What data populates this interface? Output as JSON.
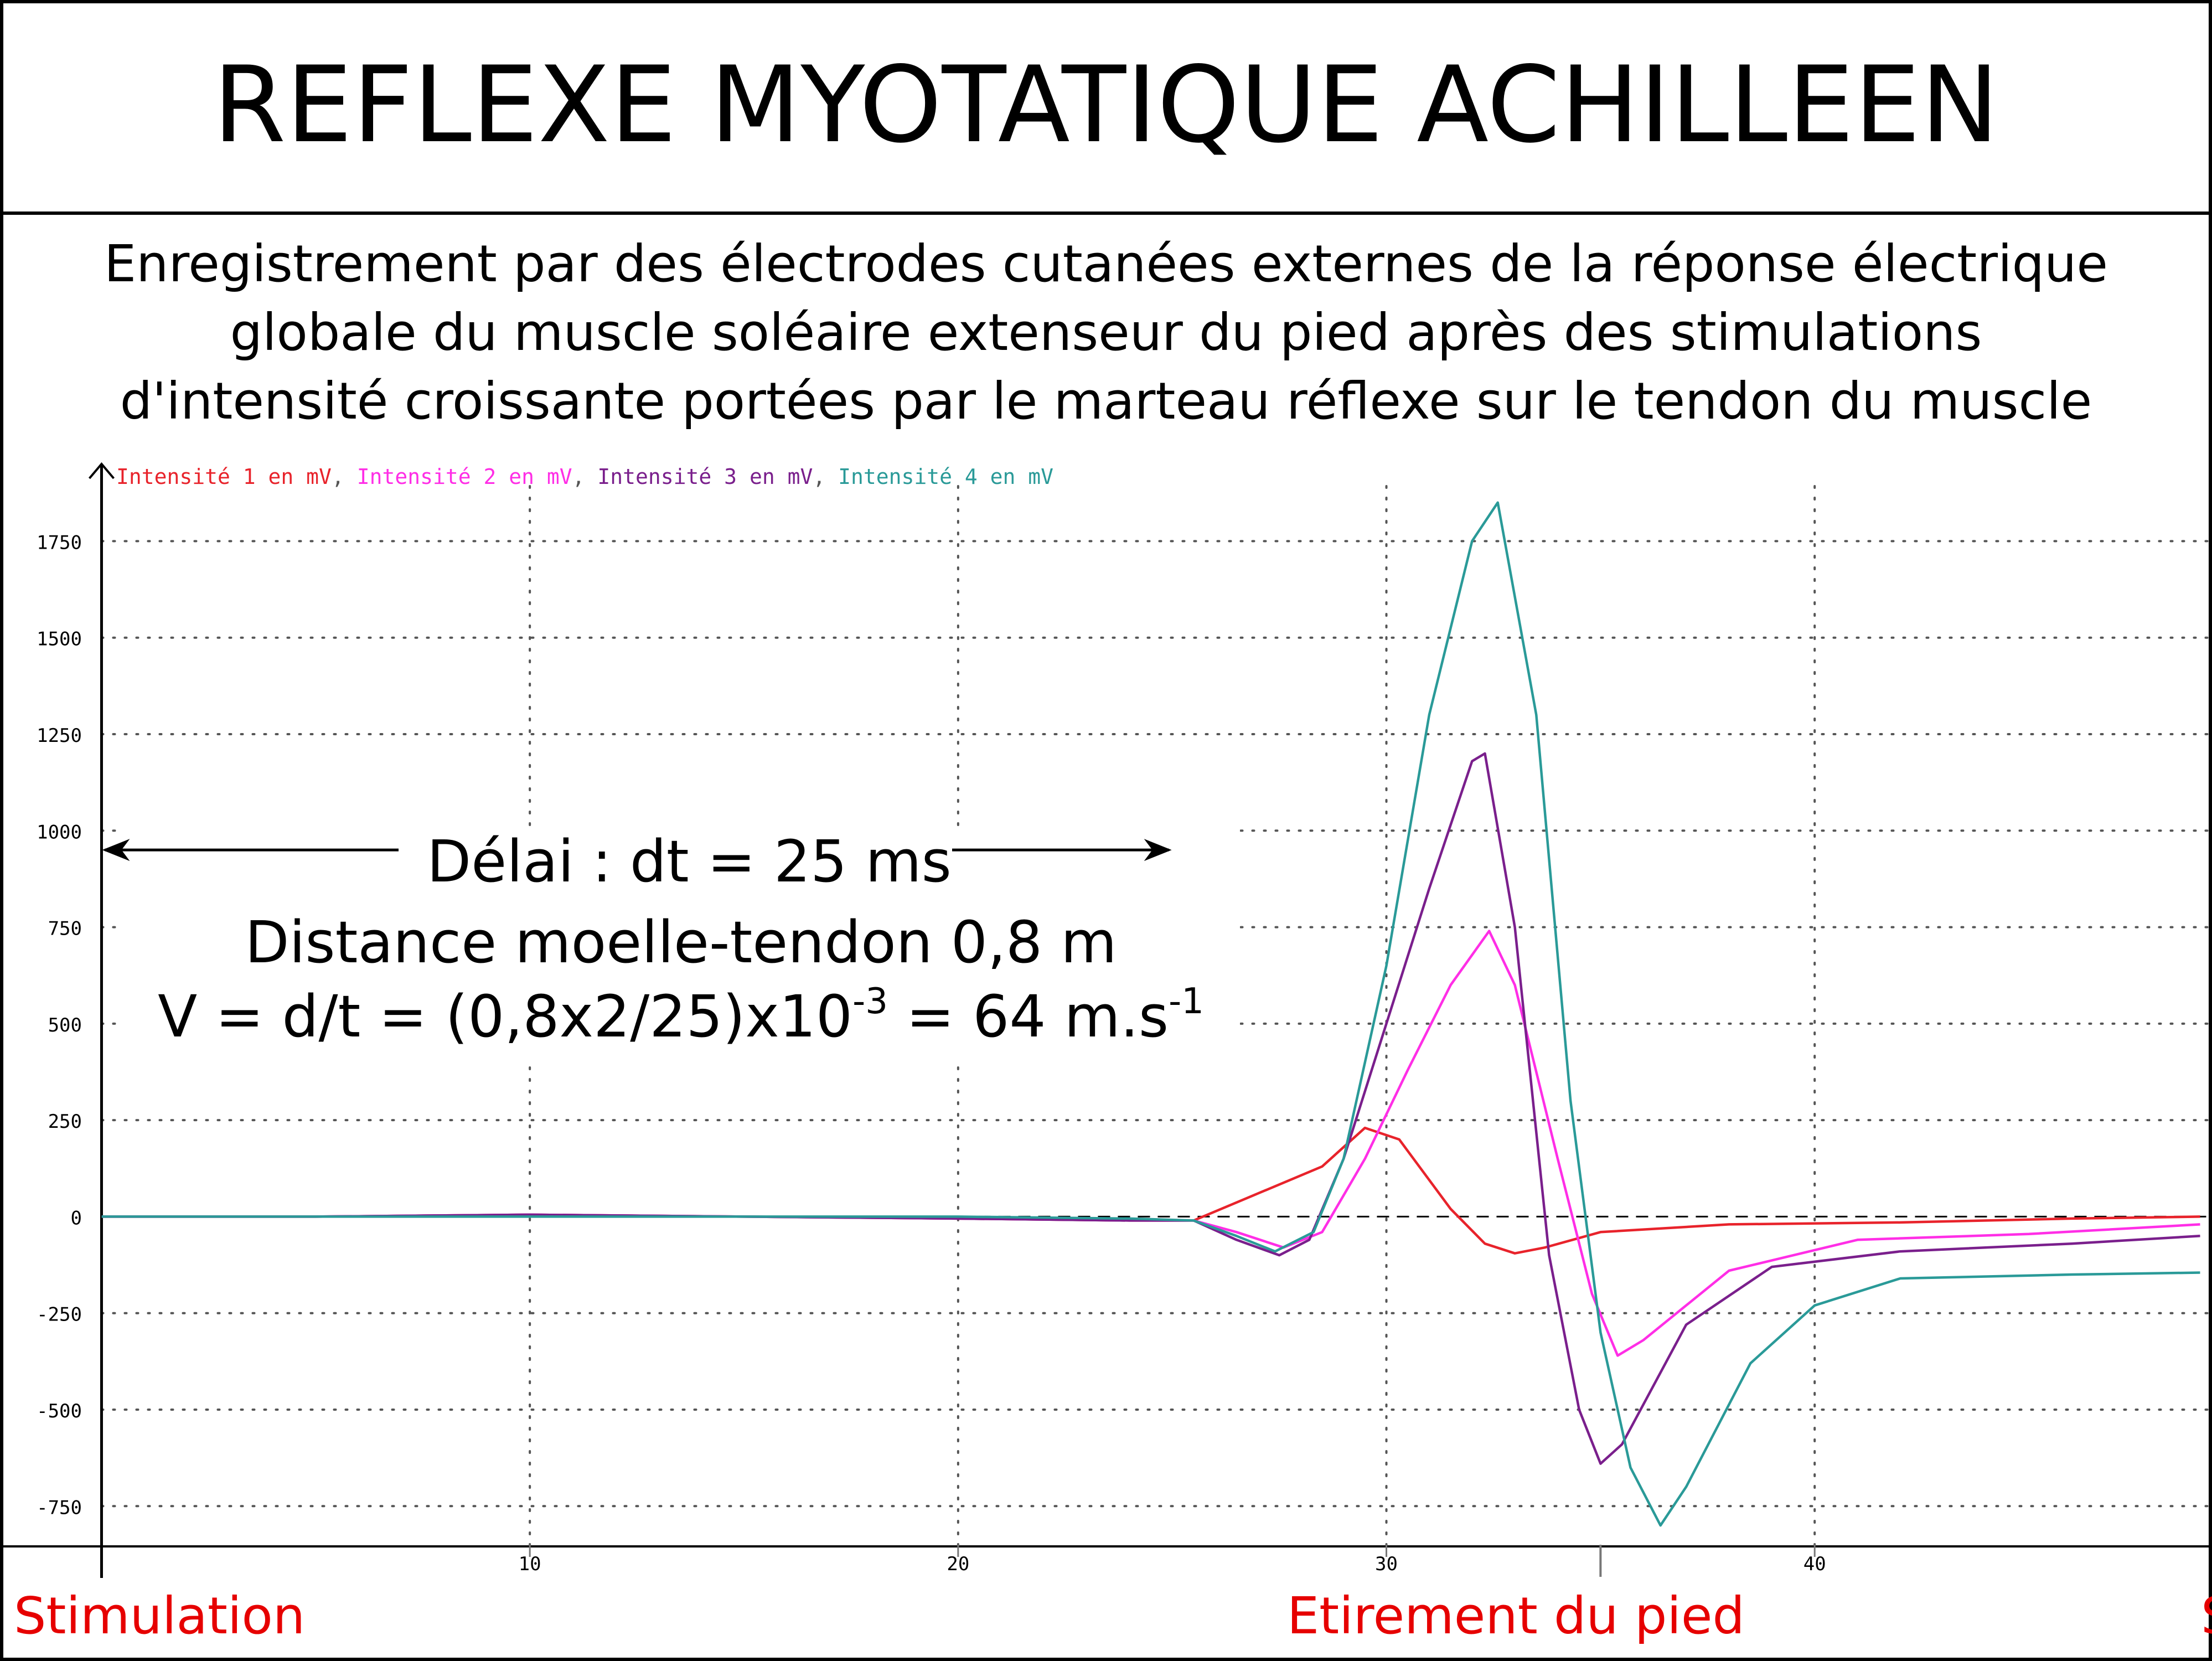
{
  "header": {
    "title": "REFLEXE MYOTATIQUE ACHILLEEN",
    "description_lines": [
      "Enregistrement par des électrodes cutanées externes de la réponse électrique",
      "globale du muscle soléaire extenseur du pied après des stimulations",
      "d'intensité croissante portées par le marteau réflexe sur le tendon du muscle"
    ]
  },
  "annotations": {
    "delay": "Délai : dt = 25 ms",
    "distance": "Distance moelle-tendon 0,8 m",
    "velocity": {
      "prefix": "V = d/t = (0,8x2/25)x10",
      "exp1": "-3",
      "middle": " = 64 m.s",
      "exp2": "-1"
    },
    "event_stimulation": "Stimulation",
    "event_stretch": "Etirement du pied",
    "event_right_cut": "S"
  },
  "colors": {
    "series": [
      "#e8232b",
      "#ff2ee6",
      "#7a1f8c",
      "#2a9a98"
    ],
    "event_text": "#e60000",
    "frame": "#000000",
    "grid": "#555555"
  },
  "chart_data": {
    "type": "line",
    "title": "",
    "xlabel": "",
    "ylabel": "",
    "xlim": [
      -0.2,
      49.2
    ],
    "ylim": [
      -850,
      1950
    ],
    "xticks": [
      10,
      20,
      30,
      40
    ],
    "xtick_labels": [
      "10",
      "20",
      "30",
      "40"
    ],
    "yticks": [
      1750,
      1500,
      1250,
      1000,
      750,
      500,
      250,
      0,
      -250,
      -500,
      -750
    ],
    "ytick_labels": [
      "1750",
      "1500",
      "1250",
      "1000",
      "750",
      "500",
      "250",
      "0",
      "-250",
      "-500",
      "-750"
    ],
    "grid": true,
    "legend_position": "top-left",
    "series": [
      {
        "name": "Intensité 1 en mV",
        "points": [
          [
            0,
            0
          ],
          [
            5,
            0
          ],
          [
            10,
            5
          ],
          [
            15,
            0
          ],
          [
            20,
            -5
          ],
          [
            24,
            -10
          ],
          [
            25.5,
            -10
          ],
          [
            27,
            60
          ],
          [
            28.5,
            130
          ],
          [
            29.5,
            230
          ],
          [
            30.3,
            200
          ],
          [
            31.5,
            20
          ],
          [
            32.3,
            -70
          ],
          [
            33,
            -95
          ],
          [
            33.7,
            -80
          ],
          [
            35,
            -40
          ],
          [
            38,
            -20
          ],
          [
            42,
            -15
          ],
          [
            46,
            -5
          ],
          [
            49,
            0
          ]
        ]
      },
      {
        "name": "Intensité 2 en mV",
        "points": [
          [
            0,
            0
          ],
          [
            5,
            0
          ],
          [
            10,
            5
          ],
          [
            15,
            0
          ],
          [
            20,
            -5
          ],
          [
            24,
            -10
          ],
          [
            25.5,
            -10
          ],
          [
            26.5,
            -40
          ],
          [
            27.6,
            -80
          ],
          [
            28.5,
            -40
          ],
          [
            29.5,
            150
          ],
          [
            30.5,
            380
          ],
          [
            31.5,
            600
          ],
          [
            32.4,
            740
          ],
          [
            33,
            600
          ],
          [
            34,
            150
          ],
          [
            34.8,
            -200
          ],
          [
            35.4,
            -360
          ],
          [
            36,
            -320
          ],
          [
            38,
            -140
          ],
          [
            41,
            -60
          ],
          [
            45,
            -45
          ],
          [
            49,
            -20
          ]
        ]
      },
      {
        "name": "Intensité 3 en mV",
        "points": [
          [
            0,
            0
          ],
          [
            5,
            0
          ],
          [
            10,
            5
          ],
          [
            15,
            0
          ],
          [
            20,
            -5
          ],
          [
            24,
            -10
          ],
          [
            25.5,
            -10
          ],
          [
            26.5,
            -60
          ],
          [
            27.5,
            -100
          ],
          [
            28.2,
            -60
          ],
          [
            29,
            150
          ],
          [
            30,
            500
          ],
          [
            31,
            850
          ],
          [
            32,
            1180
          ],
          [
            32.3,
            1200
          ],
          [
            33,
            750
          ],
          [
            33.8,
            -100
          ],
          [
            34.5,
            -500
          ],
          [
            35,
            -640
          ],
          [
            35.5,
            -590
          ],
          [
            37,
            -280
          ],
          [
            39,
            -130
          ],
          [
            42,
            -90
          ],
          [
            46,
            -70
          ],
          [
            49,
            -50
          ]
        ]
      },
      {
        "name": "Intensité 4 en mV",
        "points": [
          [
            0,
            0
          ],
          [
            5,
            0
          ],
          [
            10,
            0
          ],
          [
            15,
            0
          ],
          [
            20,
            0
          ],
          [
            24,
            -5
          ],
          [
            25.5,
            -10
          ],
          [
            26.5,
            -50
          ],
          [
            27.4,
            -90
          ],
          [
            28.3,
            -40
          ],
          [
            29,
            150
          ],
          [
            30,
            650
          ],
          [
            31,
            1300
          ],
          [
            32,
            1750
          ],
          [
            32.6,
            1850
          ],
          [
            33.5,
            1300
          ],
          [
            34.3,
            300
          ],
          [
            35,
            -300
          ],
          [
            35.7,
            -650
          ],
          [
            36.4,
            -800
          ],
          [
            37,
            -700
          ],
          [
            38.5,
            -380
          ],
          [
            40,
            -230
          ],
          [
            42,
            -160
          ],
          [
            46,
            -150
          ],
          [
            49,
            -145
          ]
        ]
      }
    ],
    "annotations": {
      "delay_arrow_from": 0,
      "delay_arrow_to": 25,
      "delay_arrow_y": 950,
      "stimulation_marker_x": 0,
      "stretch_marker_x": 35
    }
  }
}
